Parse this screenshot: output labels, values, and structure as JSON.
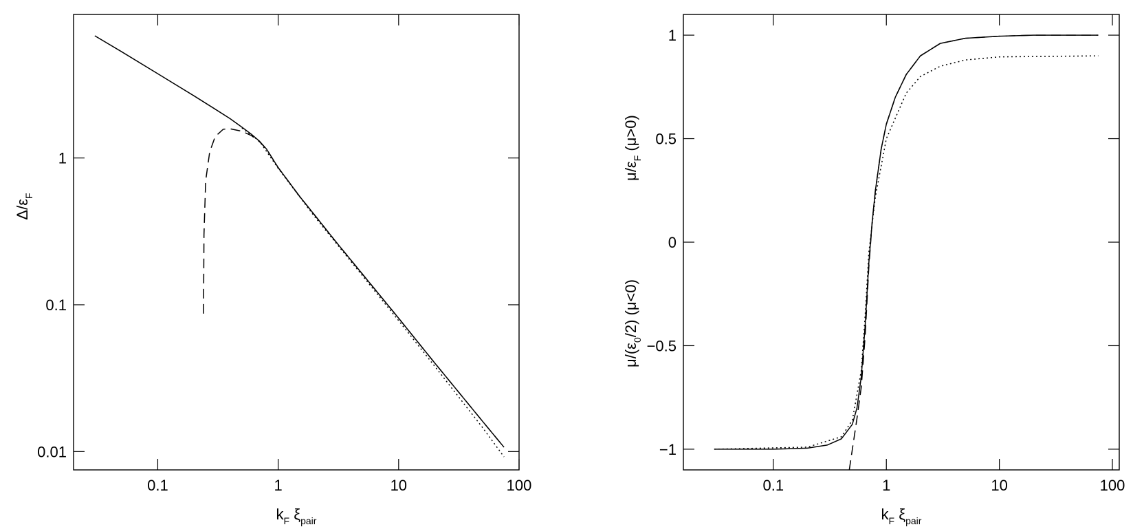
{
  "chart_data": [
    {
      "type": "line",
      "log_x": true,
      "log_y": true,
      "xlabel": [
        "k",
        "F",
        "  ξ",
        "pair"
      ],
      "ylabel": [
        [
          "Δ/ε",
          "F"
        ]
      ],
      "xlim": [
        0.02,
        100
      ],
      "ylim": [
        0.0075,
        9.5
      ],
      "xticks": [
        0.1,
        1,
        10,
        100
      ],
      "yticks": [
        0.01,
        0.1,
        1
      ],
      "series": [
        {
          "color": "#000000",
          "linestyle": "solid",
          "x": [
            0.03,
            0.05,
            0.1,
            0.2,
            0.3,
            0.4,
            0.5,
            0.6,
            0.7,
            0.8,
            1,
            1.5,
            2,
            3,
            5,
            10,
            20,
            50,
            75
          ],
          "values": [
            6.8,
            5.3,
            3.75,
            2.65,
            2.15,
            1.85,
            1.62,
            1.45,
            1.3,
            1.15,
            0.86,
            0.55,
            0.41,
            0.27,
            0.162,
            0.081,
            0.04,
            0.016,
            0.0107
          ]
        },
        {
          "color": "#000000",
          "linestyle": "dashed",
          "x": [
            0.24,
            0.242,
            0.25,
            0.27,
            0.3,
            0.35,
            0.4,
            0.5,
            0.6,
            0.7,
            0.8,
            1,
            1.5,
            2,
            3,
            5,
            10,
            20,
            50,
            75
          ],
          "values": [
            0.087,
            0.3,
            0.7,
            1.1,
            1.4,
            1.57,
            1.58,
            1.52,
            1.42,
            1.29,
            1.15,
            0.86,
            0.55,
            0.41,
            0.27,
            0.162,
            0.081,
            0.04,
            0.016,
            0.0107
          ]
        },
        {
          "color": "#000000",
          "linestyle": "dotted",
          "x": [
            0.5,
            0.7,
            1,
            2,
            5,
            10,
            20,
            50,
            75
          ],
          "values": [
            1.6,
            1.3,
            0.85,
            0.4,
            0.158,
            0.078,
            0.038,
            0.0145,
            0.0092
          ]
        }
      ]
    },
    {
      "type": "line",
      "log_x": true,
      "log_y": false,
      "xlabel": [
        "k",
        "F",
        "  ξ",
        "pair"
      ],
      "ylabel": [
        [
          "μ/(ε",
          "0",
          "/2)  (μ<0)"
        ],
        [
          "μ/ε",
          "F",
          "  (μ>0)"
        ]
      ],
      "xlim": [
        0.016,
        115
      ],
      "ylim": [
        -1.1,
        1.1
      ],
      "xticks": [
        0.1,
        1,
        10,
        100
      ],
      "yticks": [
        {
          "value": -1,
          "label": "−1"
        },
        {
          "value": -0.5,
          "label": "−0.5"
        },
        0,
        0.5,
        1
      ],
      "series": [
        {
          "color": "#000000",
          "linestyle": "solid",
          "x": [
            0.03,
            0.1,
            0.2,
            0.3,
            0.4,
            0.5,
            0.55,
            0.6,
            0.65,
            0.7,
            0.75,
            0.8,
            0.9,
            1,
            1.2,
            1.5,
            2,
            3,
            5,
            10,
            20,
            75
          ],
          "values": [
            -1,
            -1,
            -0.995,
            -0.98,
            -0.95,
            -0.88,
            -0.8,
            -0.65,
            -0.4,
            -0.1,
            0.1,
            0.25,
            0.45,
            0.57,
            0.7,
            0.81,
            0.9,
            0.96,
            0.985,
            0.995,
            1,
            1
          ]
        },
        {
          "color": "#000000",
          "linestyle": "dashed",
          "x": [
            0.47,
            0.55,
            0.6,
            0.65,
            0.7,
            0.75,
            0.8,
            0.9,
            1,
            1.2,
            1.5,
            2,
            3,
            5,
            10,
            20,
            75
          ],
          "values": [
            -1.1,
            -0.85,
            -0.7,
            -0.45,
            -0.12,
            0.1,
            0.25,
            0.45,
            0.57,
            0.7,
            0.81,
            0.9,
            0.96,
            0.985,
            0.995,
            1,
            1
          ]
        },
        {
          "color": "#000000",
          "linestyle": "dotted",
          "x": [
            0.03,
            0.2,
            0.4,
            0.5,
            0.6,
            0.65,
            0.7,
            0.8,
            1,
            1.5,
            2,
            3,
            5,
            10,
            75
          ],
          "values": [
            -1,
            -0.99,
            -0.94,
            -0.86,
            -0.62,
            -0.35,
            -0.05,
            0.22,
            0.5,
            0.72,
            0.8,
            0.85,
            0.88,
            0.895,
            0.9
          ]
        }
      ]
    }
  ]
}
